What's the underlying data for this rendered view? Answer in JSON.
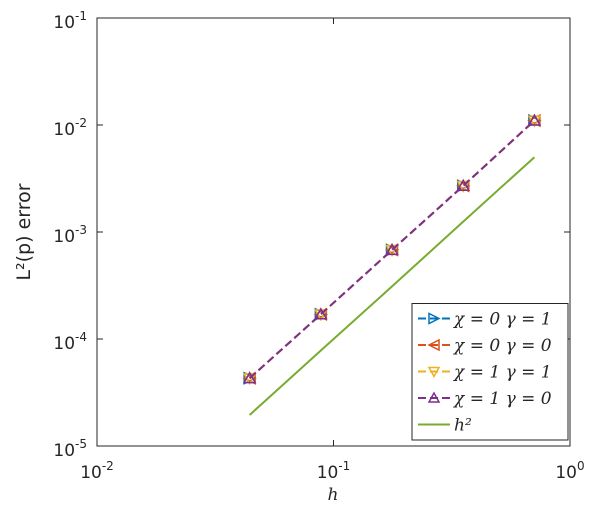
{
  "chart_data": {
    "type": "line",
    "xlabel": "h",
    "ylabel": "L²(p) error",
    "log_x": true,
    "log_y": true,
    "legend_loc": "lower right",
    "x": [
      0.0442,
      0.0884,
      0.1768,
      0.3536,
      0.7071
    ],
    "series": [
      {
        "name": "χ = 0  γ = 1",
        "color": "#0072bd",
        "marker": "right",
        "values": [
          4.3e-05,
          0.00017,
          0.00068,
          0.0027,
          0.011
        ]
      },
      {
        "name": "χ = 0  γ = 0",
        "color": "#d95319",
        "marker": "left",
        "values": [
          4.3e-05,
          0.00017,
          0.00068,
          0.0027,
          0.011
        ]
      },
      {
        "name": "χ = 1  γ = 1",
        "color": "#edb120",
        "marker": "down",
        "values": [
          4.3e-05,
          0.00017,
          0.00068,
          0.0027,
          0.011
        ]
      },
      {
        "name": "χ = 1  γ = 0",
        "color": "#7e2f8e",
        "marker": "up",
        "values": [
          4.3e-05,
          0.00017,
          0.00068,
          0.0027,
          0.011
        ]
      },
      {
        "name": "h²",
        "color": "#77ac30",
        "marker": "none",
        "values": [
          1.95e-05,
          7.8e-05,
          0.00031,
          0.00125,
          0.005
        ]
      }
    ],
    "xlim": [
      0.01,
      1
    ],
    "ylim": [
      1e-05,
      0.1
    ],
    "xticks": [
      {
        "value": 0.01,
        "label": "10",
        "exponent": "-2"
      },
      {
        "value": 0.1,
        "label": "10",
        "exponent": "-1"
      },
      {
        "value": 1,
        "label": "10",
        "exponent": "0"
      }
    ],
    "yticks": [
      {
        "value": 1e-05,
        "label": "10",
        "exponent": "-5"
      },
      {
        "value": 0.0001,
        "label": "10",
        "exponent": "-4"
      },
      {
        "value": 0.001,
        "label": "10",
        "exponent": "-3"
      },
      {
        "value": 0.01,
        "label": "10",
        "exponent": "-2"
      },
      {
        "value": 0.1,
        "label": "10",
        "exponent": "-1"
      }
    ]
  }
}
